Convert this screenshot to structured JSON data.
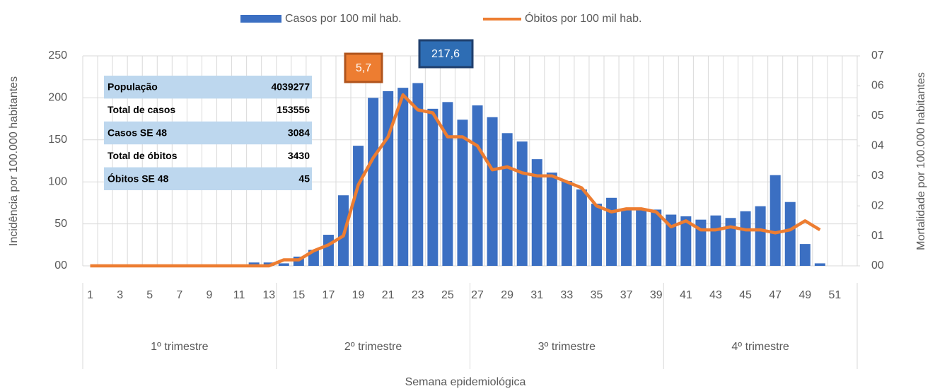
{
  "chart_data": {
    "type": "bar-line",
    "legend": "top",
    "grid": true,
    "x_label": "Semana epidemiológica",
    "y_label": "Incidência por 100.000 habitantes",
    "y2_label": "Mortalidade por 100.000 habitantes",
    "categories": [
      "1",
      null,
      "3",
      null,
      "5",
      null,
      "7",
      null,
      "9",
      null,
      "11",
      null,
      "13",
      null,
      "15",
      null,
      "17",
      null,
      "19",
      null,
      "21",
      null,
      "23",
      null,
      "25",
      null,
      "27",
      null,
      "29",
      null,
      "31",
      null,
      "33",
      null,
      "35",
      null,
      "37",
      null,
      "39",
      null,
      "41",
      null,
      "43",
      null,
      "45",
      null,
      "47",
      null,
      "49",
      null,
      "51",
      null
    ],
    "groups": [
      "1º trimestre",
      "2º trimestre",
      "3º trimestre",
      "4º trimestre"
    ],
    "ylim": [
      0,
      250
    ],
    "yticks": [
      {
        "value": 0,
        "label": "00"
      },
      50,
      100,
      150,
      200,
      250
    ],
    "y2lim": [
      0,
      0.7
    ],
    "y2ticks": [
      {
        "value": 0,
        "label": "00"
      },
      {
        "value": 0.1,
        "label": "01"
      },
      {
        "value": 0.2,
        "label": "02"
      },
      {
        "value": 0.3,
        "label": "03"
      },
      {
        "value": 0.4,
        "label": "04"
      },
      {
        "value": 0.5,
        "label": "05"
      },
      {
        "value": 0.6,
        "label": "06"
      },
      {
        "value": 0.7,
        "label": "07"
      }
    ],
    "series": [
      {
        "name": "Casos por 100 mil hab.",
        "type": "bar",
        "color": "#3b6fc2",
        "values": [
          0,
          0,
          0,
          0,
          0,
          0,
          0,
          0,
          0,
          0,
          0,
          4,
          4,
          3,
          11,
          19,
          37,
          84,
          143,
          200,
          208,
          212,
          217.6,
          187,
          195,
          174,
          191,
          177,
          158,
          148,
          127,
          111,
          101,
          91,
          74,
          81,
          67,
          67,
          67,
          61,
          59,
          55,
          60,
          57,
          65,
          71,
          108,
          76,
          26,
          3,
          null,
          null
        ]
      },
      {
        "name": "Óbitos por 100 mil hab.",
        "type": "line",
        "axis": "y2",
        "color": "#ed7d31",
        "values": [
          0,
          0,
          0,
          0,
          0,
          0,
          0,
          0,
          0,
          0,
          0,
          0,
          0,
          0.02,
          0.02,
          0.05,
          0.07,
          0.1,
          0.27,
          0.36,
          0.43,
          0.57,
          0.52,
          0.51,
          0.43,
          0.43,
          0.4,
          0.32,
          0.33,
          0.31,
          0.3,
          0.3,
          0.28,
          0.26,
          0.2,
          0.18,
          0.19,
          0.19,
          0.18,
          0.13,
          0.15,
          0.12,
          0.12,
          0.13,
          0.12,
          0.12,
          0.11,
          0.12,
          0.15,
          0.12,
          null,
          null
        ]
      }
    ],
    "annotations": [
      "5,7",
      "217,6"
    ],
    "table": {
      "rows": [
        [
          "População",
          "4039277"
        ],
        [
          "Total de casos",
          "153556"
        ],
        [
          "Casos SE 48",
          "3084"
        ],
        [
          "Total de óbitos",
          "3430"
        ],
        [
          "Óbitos SE 48",
          "45"
        ]
      ]
    }
  }
}
